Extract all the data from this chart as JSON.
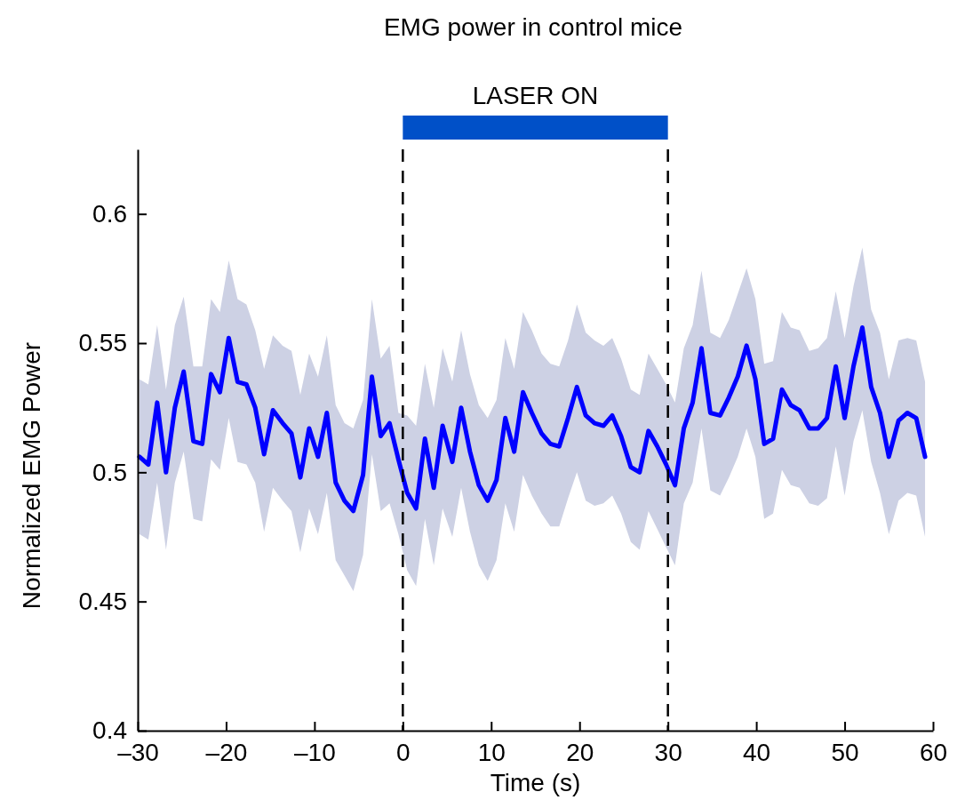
{
  "chart_data": {
    "type": "line",
    "title": "EMG power in control mice",
    "xlabel": "Time (s)",
    "ylabel": "Normalized EMG Power",
    "xlim": [
      -30,
      60
    ],
    "ylim": [
      0.4,
      0.625
    ],
    "xticks": [
      {
        "value": -30,
        "label": "–30"
      },
      {
        "value": -20,
        "label": "–20"
      },
      {
        "value": -10,
        "label": "–10"
      },
      0,
      10,
      20,
      30,
      40,
      50,
      60
    ],
    "yticks": [
      0.4,
      0.45,
      0.5,
      0.55,
      0.6
    ],
    "grid": false,
    "line_style": "solid",
    "ref_lines": [
      {
        "axis": "x",
        "value": 0,
        "color": "#000000",
        "line_style": "dashed"
      },
      {
        "axis": "x",
        "value": 30,
        "color": "#000000",
        "line_style": "dashed"
      }
    ],
    "annotations": [
      "LASER ON"
    ],
    "series": [
      {
        "color": "#0000ff",
        "x": [
          -29.8,
          -28.8,
          -27.8,
          -26.8,
          -25.8,
          -24.8,
          -23.7,
          -22.7,
          -21.7,
          -20.7,
          -19.7,
          -18.7,
          -17.7,
          -16.7,
          -15.7,
          -14.7,
          -13.6,
          -12.6,
          -11.6,
          -10.6,
          -9.6,
          -8.6,
          -7.6,
          -6.6,
          -5.6,
          -4.5,
          -3.5,
          -2.5,
          -1.5,
          -0.5,
          0.5,
          1.5,
          2.5,
          3.5,
          4.5,
          5.6,
          6.6,
          7.6,
          8.6,
          9.6,
          10.6,
          11.6,
          12.6,
          13.6,
          14.6,
          15.7,
          16.7,
          17.7,
          18.7,
          19.7,
          20.7,
          21.7,
          22.7,
          23.7,
          24.7,
          25.8,
          26.8,
          27.8,
          28.8,
          29.8,
          30.8,
          31.8,
          32.8,
          33.8,
          34.8,
          35.9,
          36.9,
          37.9,
          38.9,
          39.9,
          40.9,
          41.9,
          42.9,
          43.9,
          44.9,
          46.0,
          47.0,
          48.0,
          49.0,
          50.0,
          51.0,
          52.0,
          53.0,
          54.0,
          55.0,
          56.1,
          57.1,
          58.1,
          59.1
        ],
        "values": [
          0.506,
          0.503,
          0.527,
          0.5,
          0.525,
          0.539,
          0.512,
          0.511,
          0.538,
          0.531,
          0.552,
          0.535,
          0.534,
          0.525,
          0.507,
          0.524,
          0.519,
          0.515,
          0.498,
          0.517,
          0.506,
          0.523,
          0.496,
          0.489,
          0.485,
          0.499,
          0.537,
          0.514,
          0.519,
          0.505,
          0.492,
          0.486,
          0.513,
          0.494,
          0.518,
          0.504,
          0.525,
          0.508,
          0.495,
          0.489,
          0.497,
          0.521,
          0.508,
          0.531,
          0.523,
          0.515,
          0.511,
          0.51,
          0.521,
          0.533,
          0.522,
          0.519,
          0.518,
          0.522,
          0.514,
          0.502,
          0.5,
          0.516,
          0.51,
          0.503,
          0.495,
          0.517,
          0.527,
          0.548,
          0.523,
          0.522,
          0.529,
          0.537,
          0.549,
          0.536,
          0.511,
          0.513,
          0.532,
          0.526,
          0.524,
          0.517,
          0.517,
          0.521,
          0.541,
          0.521,
          0.541,
          0.556,
          0.533,
          0.523,
          0.506,
          0.52,
          0.523,
          0.521,
          0.506
        ],
        "upper": [
          0.536,
          0.534,
          0.557,
          0.532,
          0.557,
          0.568,
          0.541,
          0.541,
          0.567,
          0.562,
          0.582,
          0.567,
          0.565,
          0.555,
          0.54,
          0.553,
          0.549,
          0.547,
          0.53,
          0.546,
          0.537,
          0.553,
          0.526,
          0.519,
          0.517,
          0.528,
          0.567,
          0.544,
          0.549,
          0.523,
          0.522,
          0.518,
          0.542,
          0.525,
          0.548,
          0.535,
          0.555,
          0.538,
          0.526,
          0.521,
          0.528,
          0.552,
          0.54,
          0.562,
          0.555,
          0.546,
          0.542,
          0.541,
          0.551,
          0.565,
          0.554,
          0.551,
          0.549,
          0.552,
          0.544,
          0.532,
          0.53,
          0.546,
          0.54,
          0.534,
          0.527,
          0.548,
          0.557,
          0.578,
          0.554,
          0.552,
          0.559,
          0.569,
          0.579,
          0.567,
          0.542,
          0.543,
          0.562,
          0.556,
          0.555,
          0.547,
          0.548,
          0.552,
          0.57,
          0.552,
          0.572,
          0.587,
          0.563,
          0.554,
          0.536,
          0.551,
          0.552,
          0.551,
          0.535
        ],
        "lower": [
          0.476,
          0.474,
          0.496,
          0.47,
          0.496,
          0.508,
          0.482,
          0.481,
          0.505,
          0.501,
          0.521,
          0.504,
          0.503,
          0.496,
          0.477,
          0.494,
          0.489,
          0.485,
          0.469,
          0.486,
          0.476,
          0.492,
          0.466,
          0.46,
          0.454,
          0.468,
          0.507,
          0.485,
          0.488,
          0.476,
          0.462,
          0.456,
          0.482,
          0.464,
          0.486,
          0.475,
          0.494,
          0.477,
          0.464,
          0.458,
          0.466,
          0.488,
          0.477,
          0.499,
          0.491,
          0.484,
          0.479,
          0.479,
          0.49,
          0.5,
          0.489,
          0.487,
          0.488,
          0.491,
          0.484,
          0.473,
          0.47,
          0.485,
          0.478,
          0.471,
          0.464,
          0.488,
          0.496,
          0.517,
          0.493,
          0.491,
          0.498,
          0.506,
          0.517,
          0.506,
          0.482,
          0.484,
          0.501,
          0.495,
          0.494,
          0.488,
          0.487,
          0.49,
          0.51,
          0.491,
          0.512,
          0.524,
          0.504,
          0.492,
          0.476,
          0.489,
          0.492,
          0.491,
          0.475
        ]
      }
    ]
  }
}
